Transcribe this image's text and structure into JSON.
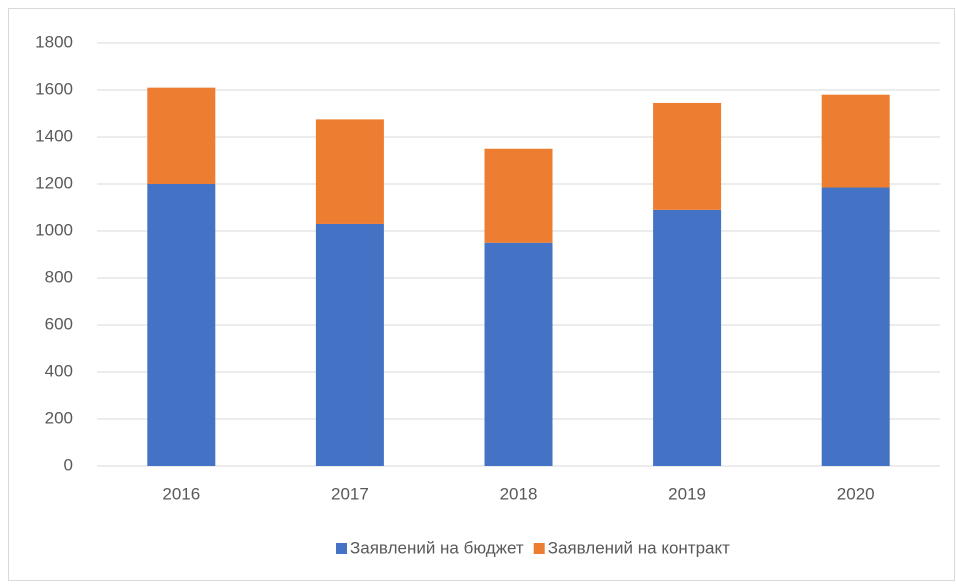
{
  "chart_data": {
    "type": "stacked_bar",
    "categories": [
      "2016",
      "2017",
      "2018",
      "2019",
      "2020"
    ],
    "series": [
      {
        "name": "Заявлений на бюджет",
        "color": "#4472c4",
        "values": [
          1200,
          1030,
          950,
          1090,
          1185
        ]
      },
      {
        "name": "Заявлений на контракт",
        "color": "#ed7d31",
        "values": [
          410,
          445,
          400,
          455,
          395
        ]
      }
    ],
    "ylim": [
      0,
      1800
    ],
    "yticks": [
      0,
      200,
      400,
      600,
      800,
      1000,
      1200,
      1400,
      1600,
      1800
    ],
    "grid": true,
    "legend": "bottom"
  }
}
